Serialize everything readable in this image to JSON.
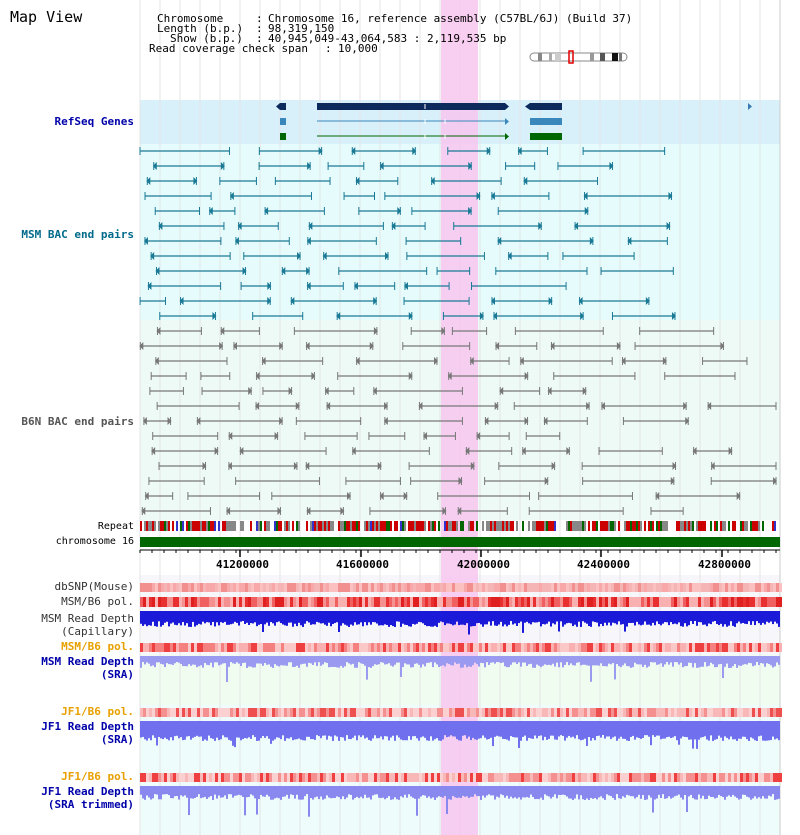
{
  "view_title": "Map View",
  "header": {
    "chromosome_key": "Chromosome",
    "chromosome_val": "Chromosome 16, reference assembly (C57BL/6J) (Build 37)",
    "length_key": "Length (b.p.)",
    "length_val": "98,319,150",
    "show_key": "Show (b.p.)",
    "show_val": "40,945,049-43,064,583 : 2,119,535 bp",
    "coverage_key": "Read coverage check span",
    "coverage_val": "10,000"
  },
  "tracks": {
    "refseq": "RefSeq Genes",
    "msm_bac": "MSM BAC end pairs",
    "b6n_bac": "B6N BAC end pairs",
    "repeat": "Repeat",
    "chromosome": "chromosome 16",
    "dbsnp": "dbSNP(Mouse)",
    "msm_b6_pol_cap": "MSM/B6 pol.",
    "msm_read_depth_cap_1": "MSM Read Depth",
    "msm_read_depth_cap_2": "(Capillary)",
    "msm_b6_pol_sra": "MSM/B6 pol.",
    "msm_read_depth_sra_1": "MSM Read Depth",
    "msm_read_depth_sra_2": "(SRA)",
    "jf1_b6_pol": "JF1/B6 pol.",
    "jf1_read_depth_1": "JF1 Read Depth",
    "jf1_read_depth_2": "(SRA)",
    "jf1_b6_pol_2": "JF1/B6 pol.",
    "jf1_read_depth_trim_1": "JF1 Read Depth",
    "jf1_read_depth_trim_2": "(SRA trimmed)"
  },
  "axis_ticks": [
    "41200000",
    "41600000",
    "42000000",
    "42400000",
    "42800000"
  ],
  "colors": {
    "label_blue": "#0000aa",
    "label_teal": "#006a8a",
    "label_gray": "#555555",
    "label_orange": "#e8a000",
    "highlight": "#f7c6ee",
    "refseq_bg": "#d8f0fa",
    "msm_bg": "#e6fbfb",
    "chrom_green": "#006600"
  }
}
